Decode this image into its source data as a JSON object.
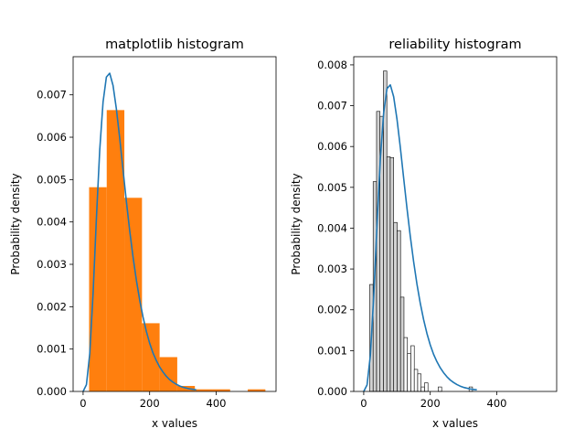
{
  "chart_data": [
    {
      "type": "bar",
      "title": "matplotlib histogram",
      "xlabel": "x values",
      "ylabel": "Probability density",
      "xlim": [
        -30,
        580
      ],
      "ylim": [
        0,
        0.0079
      ],
      "xticks": [
        0,
        200,
        400
      ],
      "xtick_labels": [
        "0",
        "200",
        "400"
      ],
      "yticks": [
        0,
        0.001,
        0.002,
        0.003,
        0.004,
        0.005,
        0.006,
        0.007
      ],
      "ytick_labels": [
        "0.000",
        "0.001",
        "0.002",
        "0.003",
        "0.004",
        "0.005",
        "0.006",
        "0.007"
      ],
      "grid": false,
      "bins": [
        {
          "x0": 18,
          "x1": 71,
          "density": 0.00482
        },
        {
          "x0": 71,
          "x1": 124,
          "density": 0.00664
        },
        {
          "x0": 124,
          "x1": 177,
          "density": 0.00457
        },
        {
          "x0": 177,
          "x1": 230,
          "density": 0.00161
        },
        {
          "x0": 230,
          "x1": 283,
          "density": 0.00081
        },
        {
          "x0": 283,
          "x1": 336,
          "density": 0.00013
        },
        {
          "x0": 336,
          "x1": 389,
          "density": 5e-05
        },
        {
          "x0": 389,
          "x1": 442,
          "density": 5e-05
        },
        {
          "x0": 442,
          "x1": 495,
          "density": 0.0
        },
        {
          "x0": 495,
          "x1": 548,
          "density": 5e-05
        }
      ],
      "curve": {
        "x": [
          0,
          10,
          20,
          30,
          40,
          50,
          60,
          70,
          80,
          90,
          100,
          110,
          120,
          130,
          140,
          150,
          160,
          170,
          180,
          190,
          200,
          210,
          220,
          230,
          240,
          250,
          260,
          270,
          280,
          290,
          300,
          310,
          320,
          330,
          340
        ],
        "y": [
          0.0,
          0.00016,
          0.00089,
          0.00232,
          0.00409,
          0.0057,
          0.00683,
          0.00742,
          0.00751,
          0.00722,
          0.00667,
          0.00598,
          0.00523,
          0.00449,
          0.0038,
          0.00318,
          0.00263,
          0.00216,
          0.00176,
          0.00142,
          0.00114,
          0.00091,
          0.00073,
          0.00058,
          0.00046,
          0.00036,
          0.00028,
          0.00022,
          0.00017,
          0.00013,
          0.0001,
          8e-05,
          6e-05,
          5e-05,
          4e-05
        ]
      },
      "colors": {
        "bars": "#ff7f0e",
        "curve": "#1f77b4"
      }
    },
    {
      "type": "bar",
      "title": "reliability histogram",
      "xlabel": "x values",
      "ylabel": "Probability density",
      "xlim": [
        -30,
        580
      ],
      "ylim": [
        0,
        0.0082
      ],
      "xticks": [
        0,
        200,
        400
      ],
      "xtick_labels": [
        "0",
        "200",
        "400"
      ],
      "yticks": [
        0,
        0.001,
        0.002,
        0.003,
        0.004,
        0.005,
        0.006,
        0.007,
        0.008
      ],
      "ytick_labels": [
        "0.000",
        "0.001",
        "0.002",
        "0.003",
        "0.004",
        "0.005",
        "0.006",
        "0.007",
        "0.008"
      ],
      "grid": false,
      "bin_width": 10.3,
      "bins_start": 18,
      "densities": [
        0.00262,
        0.00514,
        0.00686,
        0.00674,
        0.00785,
        0.00575,
        0.00573,
        0.00414,
        0.00394,
        0.00231,
        0.00132,
        0.00093,
        0.00112,
        0.00054,
        0.00043,
        0.00011,
        0.00021,
        0.0,
        0.0,
        0.0,
        0.00011,
        0.0,
        0.0,
        0.0,
        0.0,
        0.0,
        0.0,
        0.0,
        0.0,
        0.00011
      ],
      "curve": {
        "x": [
          0,
          10,
          20,
          30,
          40,
          50,
          60,
          70,
          80,
          90,
          100,
          110,
          120,
          130,
          140,
          150,
          160,
          170,
          180,
          190,
          200,
          210,
          220,
          230,
          240,
          250,
          260,
          270,
          280,
          290,
          300,
          310,
          320,
          330,
          340
        ],
        "y": [
          0.0,
          0.00016,
          0.00089,
          0.00232,
          0.00409,
          0.0057,
          0.00683,
          0.00742,
          0.00751,
          0.00722,
          0.00667,
          0.00598,
          0.00523,
          0.00449,
          0.0038,
          0.00318,
          0.00263,
          0.00216,
          0.00176,
          0.00142,
          0.00114,
          0.00091,
          0.00073,
          0.00058,
          0.00046,
          0.00036,
          0.00028,
          0.00022,
          0.00017,
          0.00013,
          0.0001,
          8e-05,
          6e-05,
          5e-05,
          4e-05
        ]
      },
      "colors": {
        "bars_fill": "#d3d3d3",
        "bars_fill_alt": "#ffffff",
        "bars_edge": "#000000",
        "curve": "#1f77b4"
      }
    }
  ]
}
